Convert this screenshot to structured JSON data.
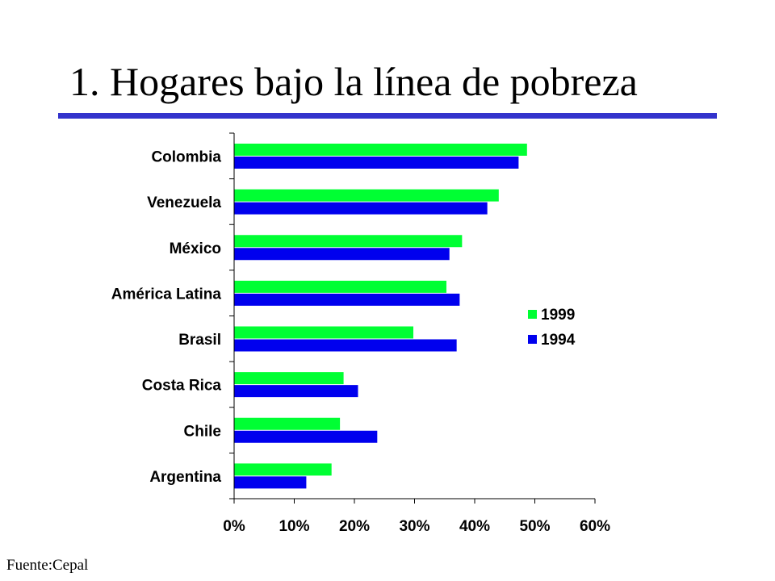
{
  "slide": {
    "title": "1. Hogares bajo la línea de pobreza",
    "source": "Fuente:Cepal"
  },
  "chart_data": {
    "type": "bar",
    "orientation": "horizontal",
    "categories": [
      "Colombia",
      "Venezuela",
      "México",
      "América Latina",
      "Brasil",
      "Costa Rica",
      "Chile",
      "Argentina"
    ],
    "series": [
      {
        "name": "1999",
        "color": "#00ff33",
        "values": [
          48.7,
          44.0,
          37.9,
          35.3,
          29.8,
          18.2,
          17.6,
          16.2
        ]
      },
      {
        "name": "1994",
        "color": "#0000ee",
        "values": [
          47.3,
          42.1,
          35.8,
          37.5,
          37.0,
          20.6,
          23.8,
          12.0
        ]
      }
    ],
    "xlim": [
      0,
      60
    ],
    "xticks": [
      "0%",
      "10%",
      "20%",
      "30%",
      "40%",
      "50%",
      "60%"
    ],
    "xlabel": "",
    "ylabel": "",
    "grid": false,
    "legend_position": "right"
  }
}
